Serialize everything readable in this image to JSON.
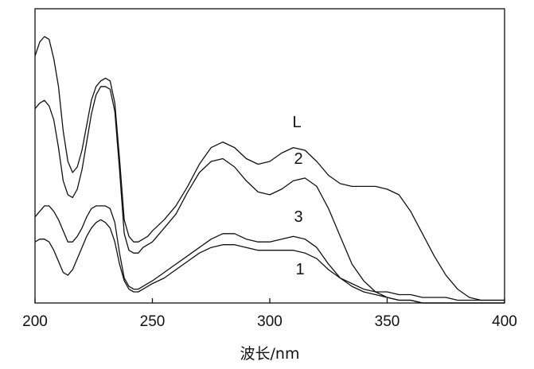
{
  "chart_data": {
    "type": "line",
    "title": "",
    "xlabel": "波长/nm",
    "ylabel": "",
    "xlim": [
      200,
      400
    ],
    "ylim": [
      0,
      1
    ],
    "xticks": [
      "200",
      "250",
      "300",
      "350",
      "400"
    ],
    "grid": false,
    "legend": "none",
    "series": [
      {
        "name": "L",
        "x": [
          200,
          202,
          204,
          206,
          208,
          210,
          212,
          214,
          216,
          218,
          220,
          222,
          224,
          226,
          228,
          230,
          232,
          234,
          236,
          238,
          240,
          242,
          244,
          246,
          248,
          250,
          255,
          260,
          265,
          270,
          275,
          280,
          285,
          290,
          295,
          300,
          305,
          310,
          315,
          320,
          325,
          330,
          335,
          340,
          345,
          350,
          355,
          360,
          365,
          370,
          375,
          380,
          385,
          390,
          395,
          400
        ],
        "y": [
          0.89,
          0.94,
          0.96,
          0.95,
          0.88,
          0.78,
          0.62,
          0.51,
          0.47,
          0.49,
          0.55,
          0.64,
          0.73,
          0.78,
          0.8,
          0.81,
          0.8,
          0.72,
          0.52,
          0.3,
          0.24,
          0.22,
          0.22,
          0.23,
          0.24,
          0.26,
          0.3,
          0.35,
          0.42,
          0.5,
          0.56,
          0.58,
          0.56,
          0.52,
          0.5,
          0.51,
          0.54,
          0.56,
          0.55,
          0.51,
          0.46,
          0.43,
          0.42,
          0.42,
          0.42,
          0.41,
          0.39,
          0.33,
          0.25,
          0.17,
          0.1,
          0.05,
          0.02,
          0.01,
          0.01,
          0.01
        ]
      },
      {
        "name": "2",
        "x": [
          200,
          202,
          204,
          206,
          208,
          210,
          212,
          214,
          216,
          218,
          220,
          222,
          224,
          226,
          228,
          230,
          232,
          234,
          236,
          238,
          240,
          242,
          244,
          246,
          248,
          250,
          255,
          260,
          265,
          270,
          275,
          280,
          285,
          290,
          295,
          300,
          305,
          310,
          315,
          320,
          325,
          330,
          335,
          340,
          345,
          350,
          355,
          360,
          365,
          370,
          375,
          380,
          385,
          390,
          395,
          400
        ],
        "y": [
          0.7,
          0.72,
          0.73,
          0.71,
          0.66,
          0.56,
          0.44,
          0.39,
          0.38,
          0.41,
          0.48,
          0.58,
          0.68,
          0.75,
          0.78,
          0.78,
          0.77,
          0.69,
          0.48,
          0.25,
          0.19,
          0.18,
          0.18,
          0.2,
          0.21,
          0.22,
          0.27,
          0.32,
          0.4,
          0.47,
          0.51,
          0.52,
          0.49,
          0.44,
          0.4,
          0.39,
          0.41,
          0.44,
          0.45,
          0.42,
          0.34,
          0.24,
          0.14,
          0.08,
          0.04,
          0.02,
          0.01,
          0.01,
          0.0,
          0.0,
          0.0,
          0.0,
          0.0,
          0.0,
          0.0,
          0.0
        ]
      },
      {
        "name": "3",
        "x": [
          200,
          202,
          204,
          206,
          208,
          210,
          212,
          214,
          216,
          218,
          220,
          222,
          224,
          226,
          228,
          230,
          232,
          234,
          236,
          238,
          240,
          242,
          244,
          246,
          248,
          250,
          255,
          260,
          265,
          270,
          275,
          280,
          285,
          290,
          295,
          300,
          305,
          310,
          315,
          320,
          325,
          330,
          335,
          340,
          345,
          350,
          355,
          360,
          365,
          370,
          375,
          380,
          385,
          390,
          395,
          400
        ],
        "y": [
          0.31,
          0.33,
          0.35,
          0.35,
          0.33,
          0.3,
          0.26,
          0.22,
          0.22,
          0.24,
          0.27,
          0.31,
          0.34,
          0.35,
          0.35,
          0.35,
          0.34,
          0.29,
          0.18,
          0.09,
          0.06,
          0.05,
          0.05,
          0.06,
          0.07,
          0.08,
          0.11,
          0.14,
          0.17,
          0.2,
          0.23,
          0.25,
          0.25,
          0.23,
          0.22,
          0.22,
          0.23,
          0.24,
          0.23,
          0.2,
          0.14,
          0.09,
          0.06,
          0.04,
          0.03,
          0.02,
          0.01,
          0.01,
          0.0,
          0.0,
          0.0,
          0.0,
          0.0,
          0.0,
          0.0,
          0.0
        ]
      },
      {
        "name": "1",
        "x": [
          200,
          202,
          204,
          206,
          208,
          210,
          212,
          214,
          216,
          218,
          220,
          222,
          224,
          226,
          228,
          230,
          232,
          234,
          236,
          238,
          240,
          242,
          244,
          246,
          248,
          250,
          255,
          260,
          265,
          270,
          275,
          280,
          285,
          290,
          295,
          300,
          305,
          310,
          315,
          320,
          325,
          330,
          335,
          340,
          345,
          350,
          355,
          360,
          365,
          370,
          375,
          380,
          385,
          390,
          395,
          400
        ],
        "y": [
          0.22,
          0.23,
          0.23,
          0.22,
          0.19,
          0.15,
          0.11,
          0.1,
          0.12,
          0.16,
          0.2,
          0.24,
          0.27,
          0.29,
          0.3,
          0.29,
          0.27,
          0.22,
          0.14,
          0.08,
          0.05,
          0.04,
          0.04,
          0.05,
          0.06,
          0.07,
          0.09,
          0.12,
          0.15,
          0.18,
          0.2,
          0.21,
          0.21,
          0.2,
          0.19,
          0.19,
          0.19,
          0.19,
          0.18,
          0.16,
          0.12,
          0.09,
          0.07,
          0.05,
          0.04,
          0.04,
          0.03,
          0.03,
          0.02,
          0.02,
          0.02,
          0.01,
          0.01,
          0.01,
          0.01,
          0.01
        ]
      }
    ]
  }
}
